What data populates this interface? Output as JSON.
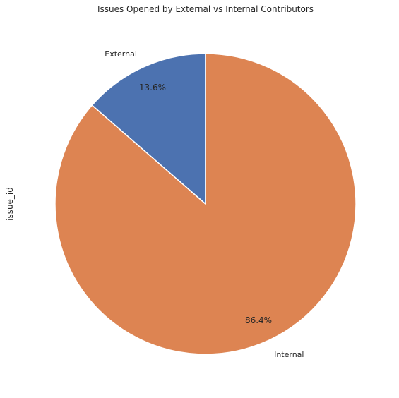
{
  "chart_data": {
    "type": "pie",
    "title": "Issues Opened by External vs Internal Contributors",
    "ylabel": "issue_id",
    "start_angle_deg": 90,
    "direction": "counterclockwise",
    "slices": [
      {
        "label": "External",
        "percent": 13.6,
        "pct_label": "13.6%",
        "color": "#4c72b0"
      },
      {
        "label": "Internal",
        "percent": 86.4,
        "pct_label": "86.4%",
        "color": "#dd8452"
      }
    ]
  }
}
